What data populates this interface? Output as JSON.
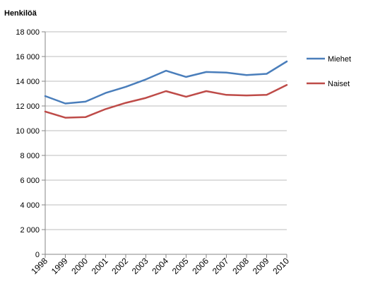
{
  "chart_data": {
    "type": "line",
    "title": "",
    "xlabel": "",
    "ylabel": "Henkilöä",
    "x": [
      "1998",
      "1999",
      "2000",
      "2001",
      "2002",
      "2003",
      "2004",
      "2005",
      "2006",
      "2007",
      "2008",
      "2009",
      "2010"
    ],
    "ylim": [
      0,
      18000
    ],
    "yticks": [
      0,
      2000,
      4000,
      6000,
      8000,
      10000,
      12000,
      14000,
      16000,
      18000
    ],
    "ytick_labels": [
      "0",
      "2 000",
      "4 000",
      "6 000",
      "8 000",
      "10 000",
      "12 000",
      "14 000",
      "16 000",
      "18 000"
    ],
    "grid": "horizontal",
    "legend_position": "right",
    "series": [
      {
        "name": "Miehet",
        "color": "#4a7ebb",
        "values": [
          12800,
          12200,
          12350,
          13050,
          13550,
          14150,
          14850,
          14350,
          14750,
          14700,
          14500,
          14600,
          15600
        ]
      },
      {
        "name": "Naiset",
        "color": "#be4b48",
        "values": [
          11550,
          11050,
          11100,
          11750,
          12250,
          12650,
          13200,
          12750,
          13200,
          12900,
          12850,
          12900,
          13700
        ]
      }
    ]
  }
}
